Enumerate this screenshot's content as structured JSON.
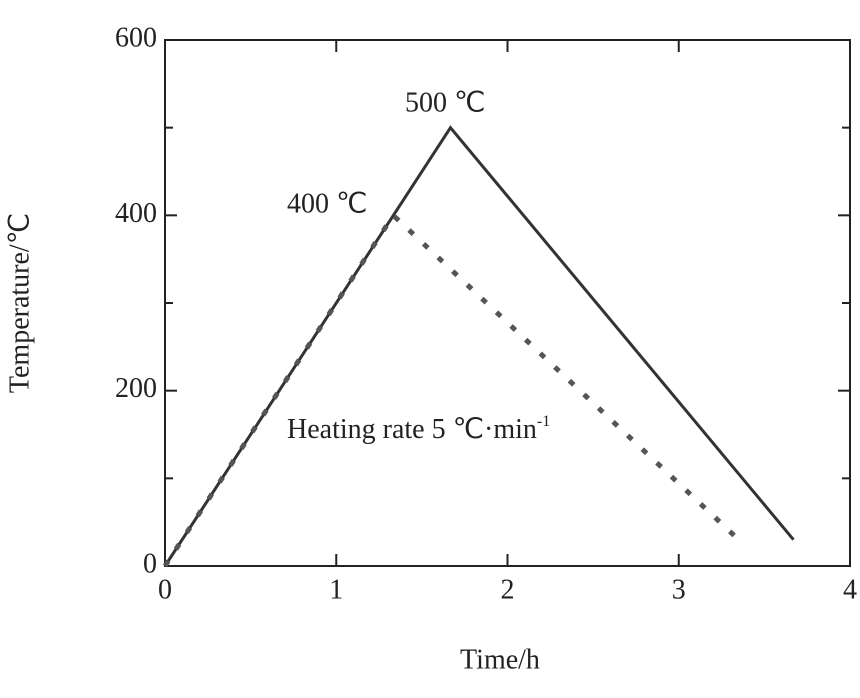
{
  "chart_data": {
    "type": "line",
    "x_label": "Time/h",
    "y_label": "Temperature/℃",
    "xlim": [
      0,
      4
    ],
    "xticks": [
      0,
      1,
      2,
      3,
      4
    ],
    "ylim": [
      0,
      600
    ],
    "yticks": [
      0,
      200,
      400,
      600
    ],
    "yminor": [
      100,
      300,
      500
    ],
    "series": [
      {
        "x": [
          0,
          1.667,
          3.67
        ],
        "values": [
          0,
          500,
          30
        ],
        "color": "#333333",
        "dashed": false
      },
      {
        "x": [
          0,
          1.333,
          3.35
        ],
        "values": [
          0,
          400,
          30
        ],
        "color": "#555555",
        "dashed": true
      }
    ],
    "annotations": [
      {
        "text": "500 ℃"
      },
      {
        "text": "400 ℃"
      },
      {
        "text": "Heating rate 5 ℃·min",
        "sup": "-1"
      }
    ]
  }
}
